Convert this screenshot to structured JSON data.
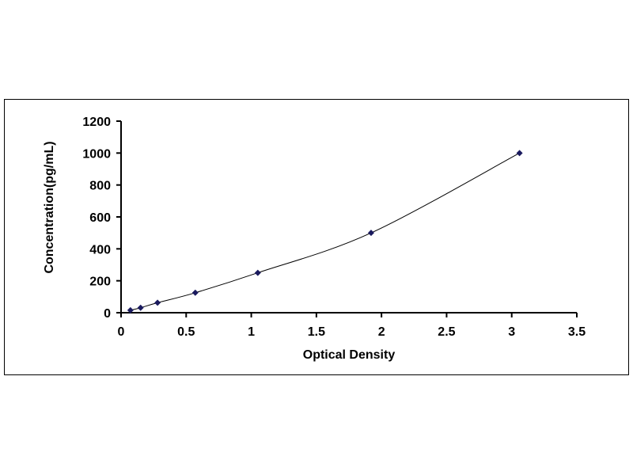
{
  "chart_data": {
    "type": "scatter",
    "title": "",
    "xlabel": "Optical Density",
    "ylabel": "Concentration(pg/mL)",
    "xlim": [
      0,
      3.5
    ],
    "ylim": [
      0,
      1200
    ],
    "xticks": [
      "0",
      "0.5",
      "1",
      "1.5",
      "2",
      "2.5",
      "3",
      "3.5"
    ],
    "yticks": [
      "0",
      "200",
      "400",
      "600",
      "800",
      "1000",
      "1200"
    ],
    "grid": false,
    "smooth_line": true,
    "marker": "diamond",
    "colors": {
      "marker": "#1a1a5e",
      "line": "#000000"
    },
    "series": [
      {
        "x": [
          0.072,
          0.15,
          0.28,
          0.57,
          1.05,
          1.92,
          3.06
        ],
        "y": [
          15.6,
          31.2,
          62.5,
          125,
          250,
          500,
          1000
        ]
      }
    ]
  }
}
